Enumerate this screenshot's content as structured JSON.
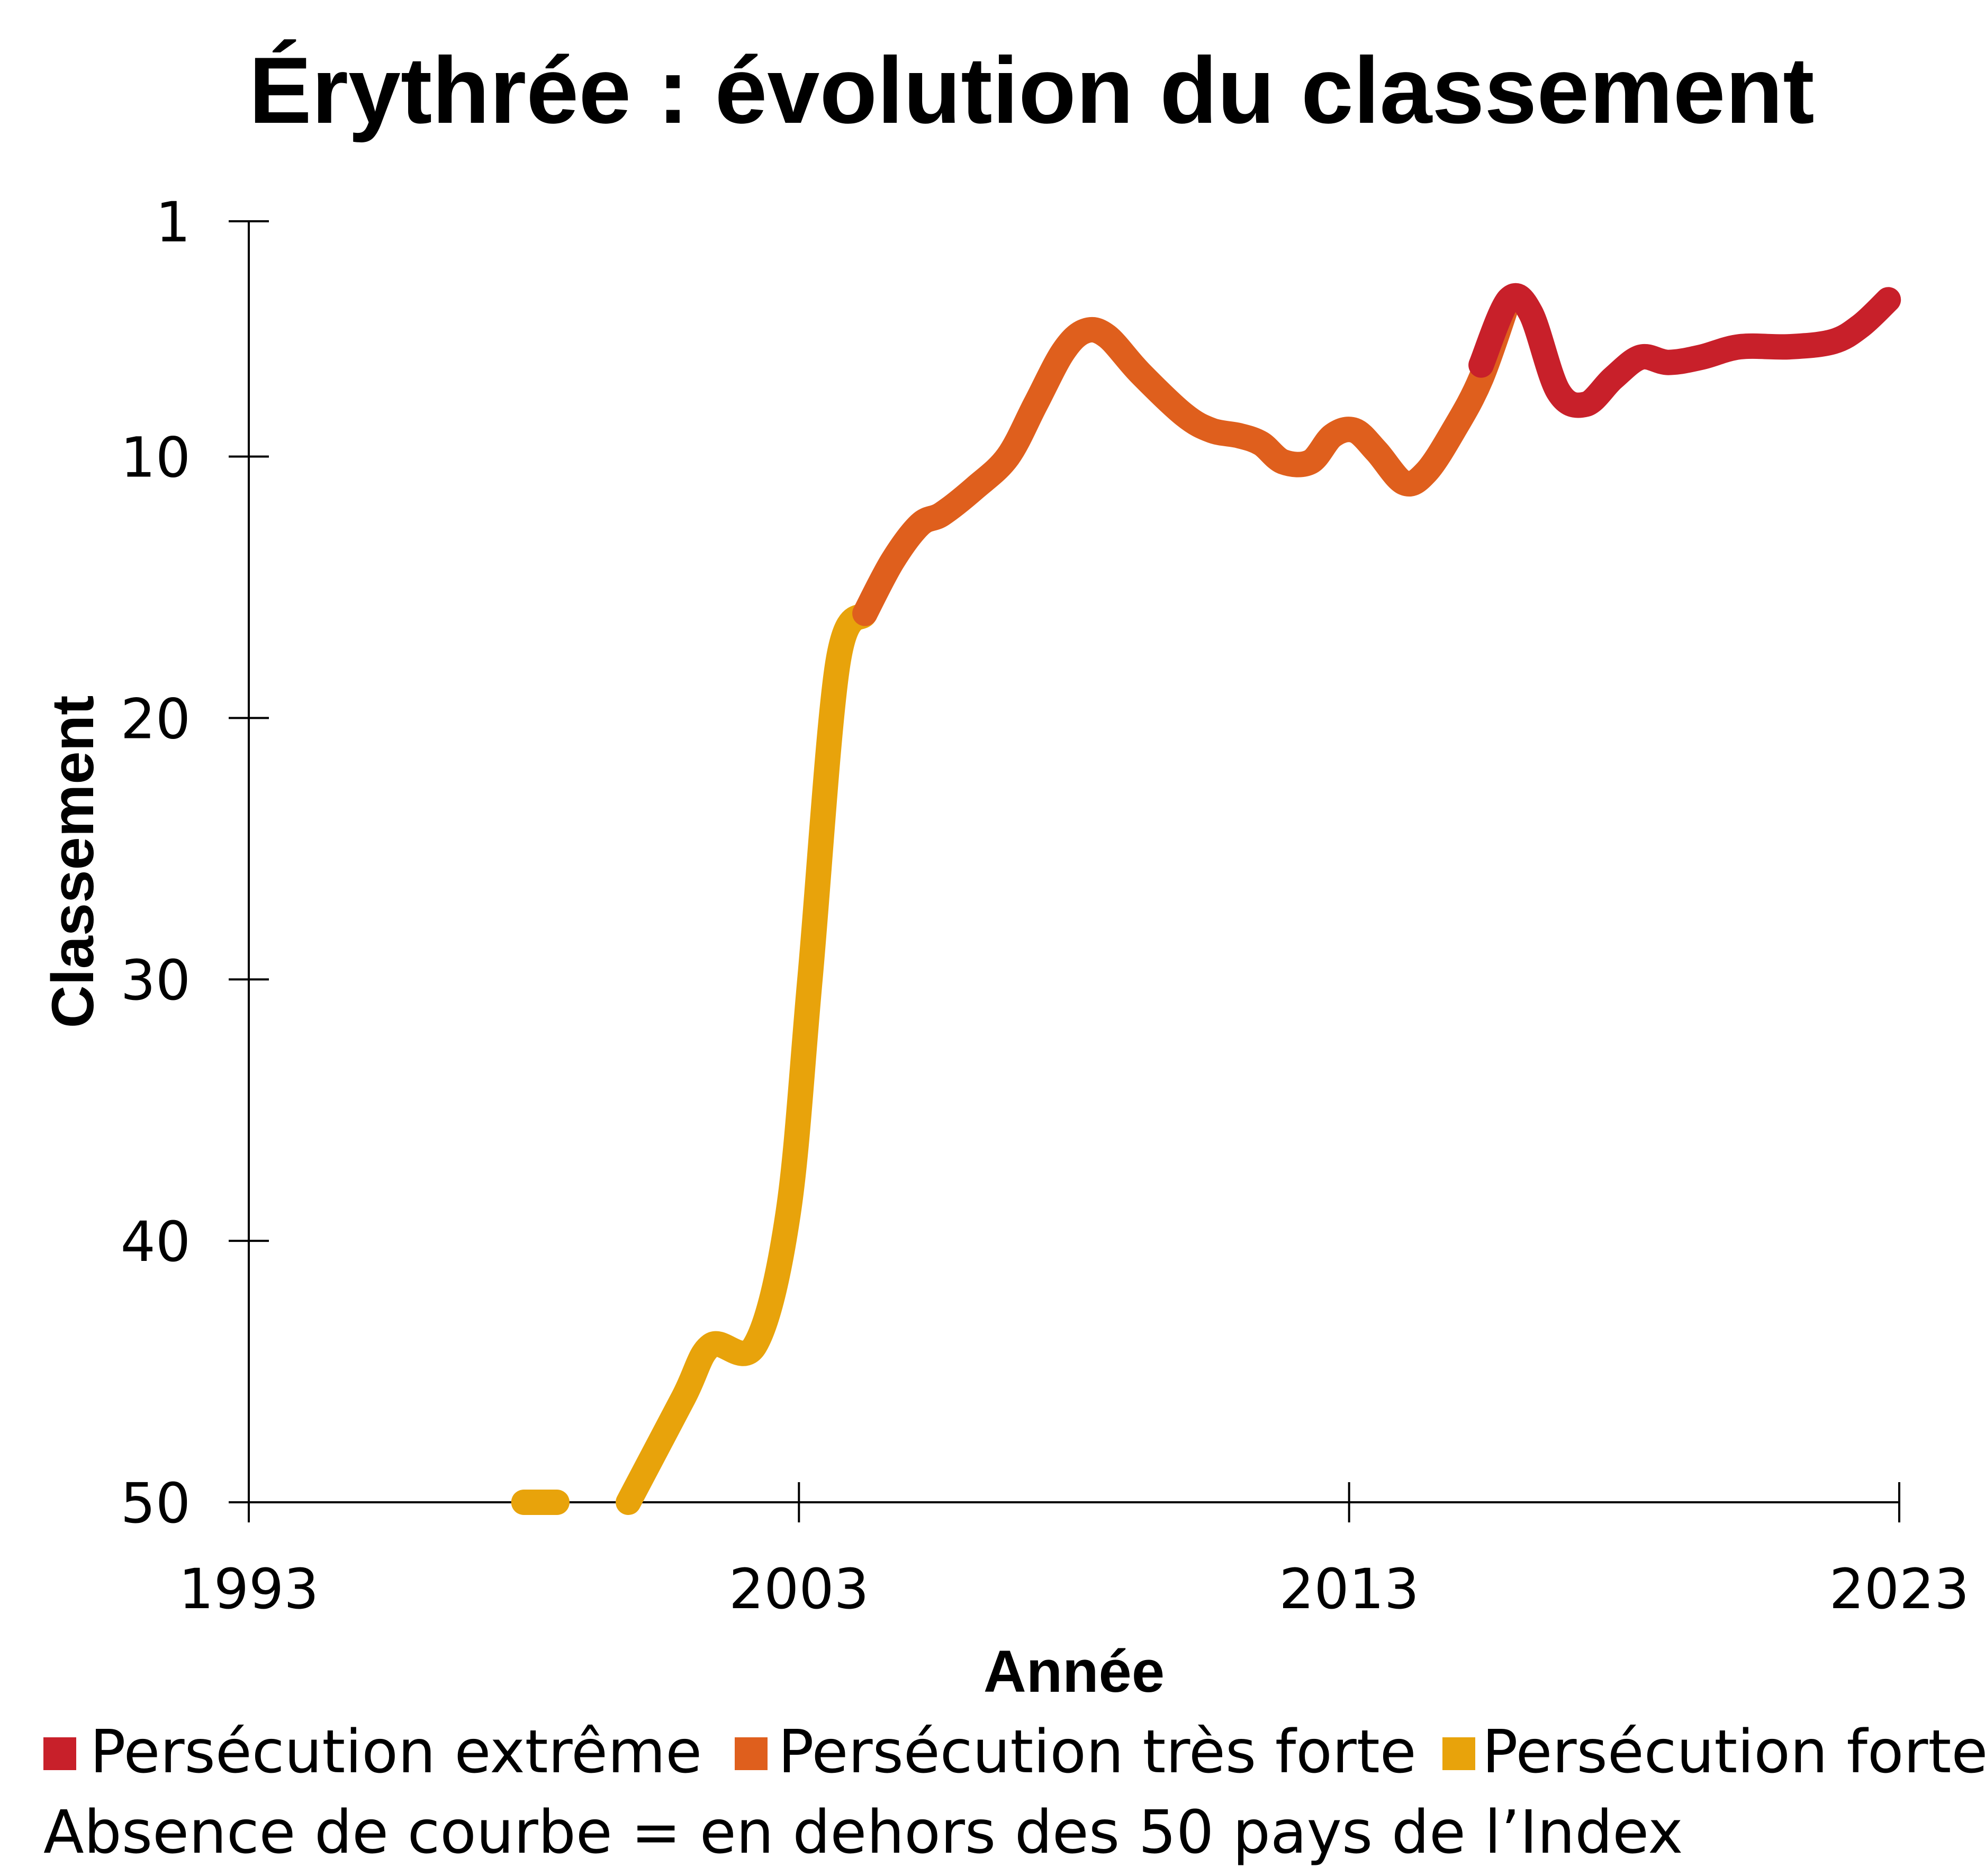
{
  "chart_data": {
    "type": "line",
    "title": "Érythrée : évolution du classement",
    "xlabel": "Année",
    "ylabel": "Classement",
    "x_ticks": [
      "1993",
      "2003",
      "2013",
      "2023"
    ],
    "y_ticks": [
      "1",
      "10",
      "20",
      "30",
      "40",
      "50"
    ],
    "xlim": [
      1993,
      2023
    ],
    "ylim": [
      1,
      50
    ],
    "y_inverted": true,
    "grid": false,
    "series": [
      {
        "name": "Persécution forte",
        "color": "#E8A30B",
        "segments": [
          [
            [
              1998,
              50
            ],
            [
              1998.6,
              50
            ]
          ],
          [
            [
              1999.9,
              50
            ],
            [
              2000.9,
              46
            ],
            [
              2001.4,
              44
            ],
            [
              2002.2,
              44
            ],
            [
              2002.8,
              39
            ],
            [
              2003.2,
              30
            ],
            [
              2003.7,
              18
            ],
            [
              2004.2,
              16
            ]
          ]
        ]
      },
      {
        "name": "Persécution très forte",
        "color": "#DF5F1D",
        "segments": [
          [
            [
              2004.2,
              16
            ],
            [
              2004.7,
              14
            ],
            [
              2005.2,
              12.6
            ],
            [
              2005.6,
              12.2
            ],
            [
              2006.2,
              11.2
            ],
            [
              2006.8,
              10
            ],
            [
              2007.3,
              8
            ],
            [
              2007.8,
              6
            ],
            [
              2008.2,
              5.2
            ],
            [
              2008.6,
              5.4
            ],
            [
              2009.2,
              6.8
            ],
            [
              2010,
              8.4
            ],
            [
              2010.5,
              9.0
            ],
            [
              2011,
              9.2
            ],
            [
              2011.4,
              9.5
            ],
            [
              2011.8,
              10.2
            ],
            [
              2012.3,
              10.2
            ],
            [
              2012.7,
              9.2
            ],
            [
              2013.1,
              9.0
            ],
            [
              2013.5,
              9.8
            ],
            [
              2014,
              11.0
            ],
            [
              2014.4,
              10.6
            ],
            [
              2014.9,
              9.0
            ],
            [
              2015.4,
              7.0
            ],
            [
              2015.9,
              4.0
            ]
          ]
        ]
      },
      {
        "name": "Persécution extrême",
        "color": "#C8202A",
        "segments": [
          [
            [
              2015.4,
              6.5
            ],
            [
              2015.9,
              4.0
            ],
            [
              2016.3,
              4.5
            ],
            [
              2016.8,
              7.5
            ],
            [
              2017.3,
              8.0
            ],
            [
              2017.8,
              7.0
            ],
            [
              2018.3,
              6.2
            ],
            [
              2018.8,
              6.4
            ],
            [
              2019.4,
              6.2
            ],
            [
              2020.1,
              5.8
            ],
            [
              2021,
              5.8
            ],
            [
              2021.8,
              5.6
            ],
            [
              2022.3,
              5.0
            ],
            [
              2022.8,
              4.0
            ]
          ]
        ]
      }
    ],
    "legend": {
      "placement": "bottom",
      "items": [
        {
          "label": "Persécution extrême",
          "color": "#C8202A"
        },
        {
          "label": "Persécution très forte",
          "color": "#DF5F1D"
        },
        {
          "label": "Persécution forte",
          "color": "#E8A30B"
        }
      ],
      "note": "Absence de courbe = en dehors des 50 pays de l’Index"
    }
  }
}
